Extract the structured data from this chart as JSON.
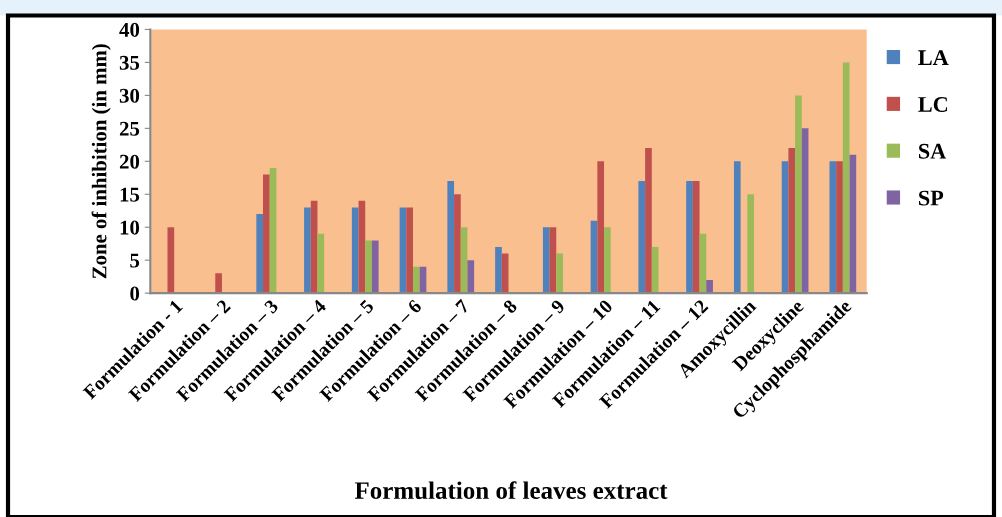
{
  "chart_data": {
    "type": "bar",
    "xlabel": "Formulation of leaves extract",
    "ylabel": "Zone of inhibition (in mm)",
    "categories": [
      "Formulation - 1",
      "Formulation – 2",
      "Formulation – 3",
      "Formulation – 4",
      "Formulation – 5",
      "Formulation – 6",
      "Formulation – 7",
      "Formulation – 8",
      "Formulation – 9",
      "Formulation – 10",
      "Formulation – 11",
      "Formulation – 12",
      "Amoxycillin",
      "Deoxycline",
      "Cyclophosphamide"
    ],
    "series": [
      {
        "name": "LA",
        "color": "#4f81bd",
        "values": [
          null,
          null,
          12,
          13,
          13,
          13,
          17,
          7,
          10,
          11,
          17,
          17,
          20,
          20,
          20
        ]
      },
      {
        "name": "LC",
        "color": "#c0504d",
        "values": [
          10,
          3,
          18,
          14,
          14,
          13,
          15,
          6,
          10,
          20,
          22,
          17,
          null,
          22,
          20
        ]
      },
      {
        "name": "SA",
        "color": "#9bbb59",
        "values": [
          null,
          null,
          19,
          9,
          8,
          4,
          10,
          null,
          6,
          10,
          7,
          9,
          15,
          30,
          35
        ]
      },
      {
        "name": "SP",
        "color": "#8064a2",
        "values": [
          null,
          null,
          null,
          null,
          8,
          4,
          5,
          null,
          null,
          null,
          null,
          2,
          null,
          25,
          21
        ]
      }
    ],
    "ylim": [
      0,
      40
    ],
    "yticks": [
      0,
      5,
      10,
      15,
      20,
      25,
      30,
      35,
      40
    ],
    "grid": false,
    "legend": "right"
  }
}
